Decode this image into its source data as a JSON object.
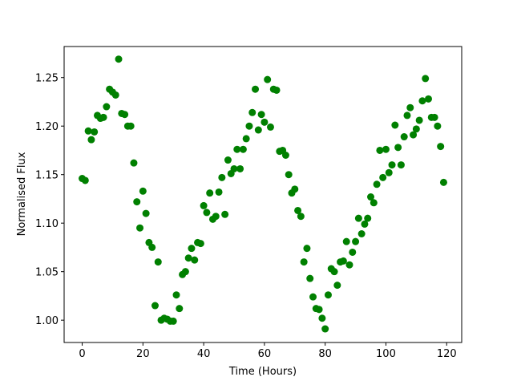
{
  "chart_data": {
    "type": "scatter",
    "xlabel": "Time (Hours)",
    "ylabel": "Normalised Flux",
    "color": "#008000",
    "x": [
      0,
      1,
      2,
      3,
      4,
      5,
      6,
      7,
      8,
      9,
      10,
      11,
      12,
      13,
      14,
      15,
      16,
      17,
      18,
      19,
      20,
      21,
      22,
      23,
      24,
      25,
      26,
      27,
      28,
      29,
      30,
      31,
      32,
      33,
      34,
      35,
      36,
      37,
      38,
      39,
      40,
      41,
      42,
      43,
      44,
      45,
      46,
      47,
      48,
      49,
      50,
      51,
      52,
      53,
      54,
      55,
      56,
      57,
      58,
      59,
      60,
      61,
      62,
      63,
      64,
      65,
      66,
      67,
      68,
      69,
      70,
      71,
      72,
      73,
      74,
      75,
      76,
      77,
      78,
      79,
      80,
      81,
      82,
      83,
      84,
      85,
      86,
      87,
      88,
      89,
      90,
      91,
      92,
      93,
      94,
      95,
      96,
      97,
      98,
      99,
      100,
      101,
      102,
      103,
      104,
      105,
      106,
      107,
      108,
      109,
      110,
      111,
      112,
      113,
      114,
      115,
      116,
      117,
      118,
      119
    ],
    "values": [
      1.146,
      1.144,
      1.195,
      1.186,
      1.194,
      1.211,
      1.208,
      1.209,
      1.22,
      1.238,
      1.235,
      1.232,
      1.269,
      1.213,
      1.212,
      1.2,
      1.2,
      1.162,
      1.122,
      1.095,
      1.133,
      1.11,
      1.08,
      1.075,
      1.015,
      1.06,
      1.0,
      1.002,
      1.001,
      0.999,
      0.999,
      1.026,
      1.012,
      1.047,
      1.05,
      1.064,
      1.074,
      1.062,
      1.08,
      1.079,
      1.118,
      1.111,
      1.131,
      1.104,
      1.107,
      1.132,
      1.147,
      1.109,
      1.165,
      1.151,
      1.156,
      1.176,
      1.156,
      1.176,
      1.187,
      1.2,
      1.214,
      1.238,
      1.196,
      1.212,
      1.204,
      1.248,
      1.199,
      1.238,
      1.237,
      1.174,
      1.175,
      1.17,
      1.15,
      1.131,
      1.135,
      1.113,
      1.107,
      1.06,
      1.074,
      1.043,
      1.024,
      1.012,
      1.011,
      1.002,
      0.991,
      1.026,
      1.053,
      1.05,
      1.036,
      1.06,
      1.061,
      1.081,
      1.057,
      1.07,
      1.081,
      1.105,
      1.089,
      1.099,
      1.105,
      1.127,
      1.121,
      1.14,
      1.175,
      1.147,
      1.176,
      1.152,
      1.16,
      1.201,
      1.178,
      1.16,
      1.189,
      1.211,
      1.219,
      1.191,
      1.197,
      1.206,
      1.226,
      1.249,
      1.228,
      1.209,
      1.209,
      1.2,
      1.179,
      1.142
    ],
    "xlim": [
      -5.95,
      124.95
    ],
    "xticks": [
      0,
      20,
      40,
      60,
      80,
      100,
      120
    ],
    "ylim": [
      0.977,
      1.282
    ],
    "yticks": [
      {
        "value": 1.0,
        "label": "1.00"
      },
      1.05,
      {
        "value": 1.1,
        "label": "1.10"
      },
      1.15,
      {
        "value": 1.2,
        "label": "1.20"
      },
      1.25
    ],
    "grid": false
  }
}
